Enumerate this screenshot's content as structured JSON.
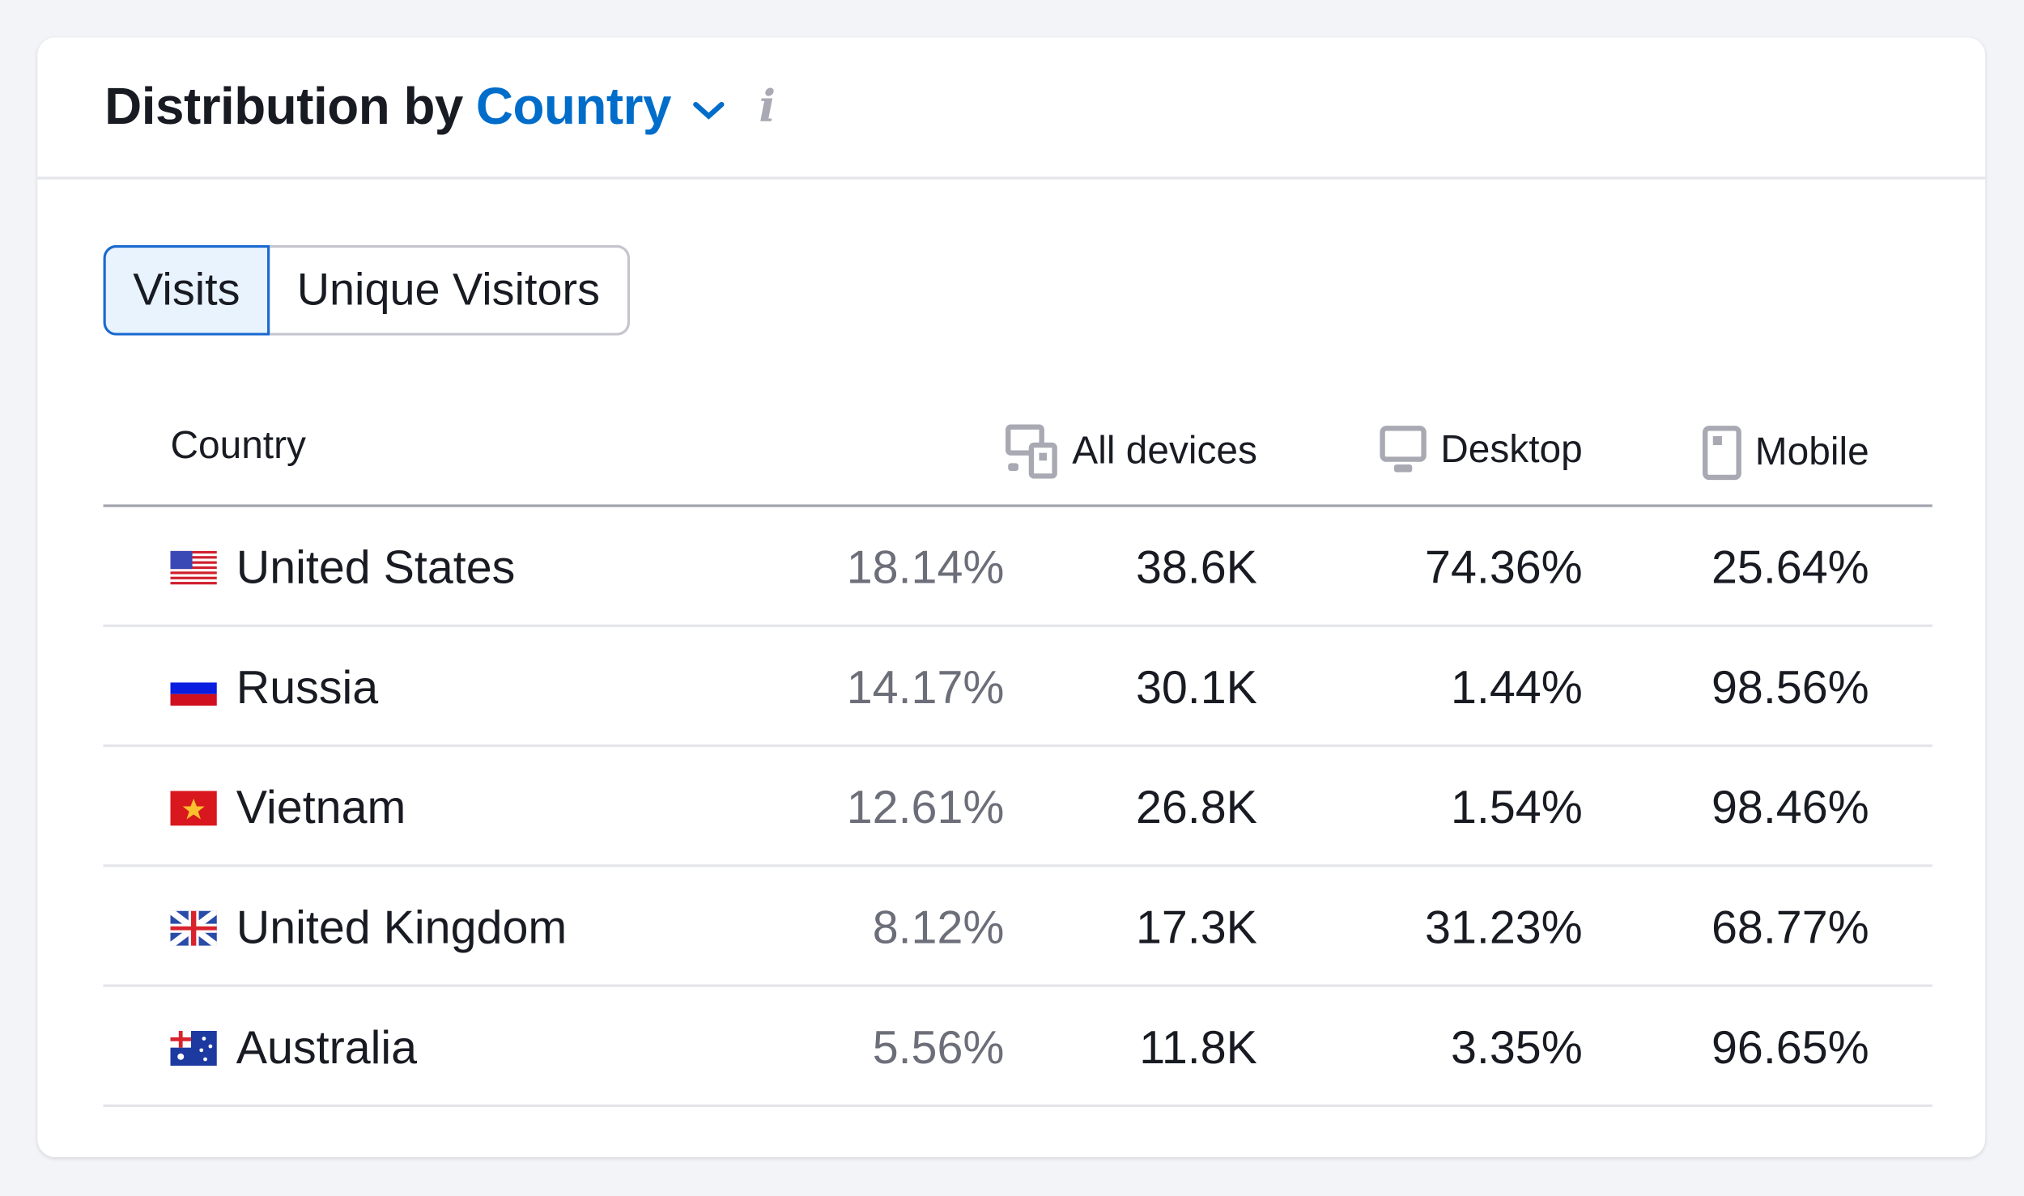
{
  "header": {
    "title_prefix": "Distribution by",
    "title_dimension": "Country"
  },
  "tabs": [
    {
      "label": "Visits",
      "active": true
    },
    {
      "label": "Unique Visitors",
      "active": false
    }
  ],
  "table": {
    "columns": {
      "country": "Country",
      "all_devices": "All devices",
      "desktop": "Desktop",
      "mobile": "Mobile"
    },
    "rows": [
      {
        "flag": "us",
        "country": "United States",
        "share": "18.14%",
        "all_devices": "38.6K",
        "desktop": "74.36%",
        "mobile": "25.64%"
      },
      {
        "flag": "ru",
        "country": "Russia",
        "share": "14.17%",
        "all_devices": "30.1K",
        "desktop": "1.44%",
        "mobile": "98.56%"
      },
      {
        "flag": "vn",
        "country": "Vietnam",
        "share": "12.61%",
        "all_devices": "26.8K",
        "desktop": "1.54%",
        "mobile": "98.46%"
      },
      {
        "flag": "gb",
        "country": "United Kingdom",
        "share": "8.12%",
        "all_devices": "17.3K",
        "desktop": "31.23%",
        "mobile": "68.77%"
      },
      {
        "flag": "au",
        "country": "Australia",
        "share": "5.56%",
        "all_devices": "11.8K",
        "desktop": "3.35%",
        "mobile": "96.65%"
      }
    ]
  },
  "colors": {
    "accent": "#006dca",
    "muted": "#6c6e79",
    "icon": "#a8a9b3"
  }
}
